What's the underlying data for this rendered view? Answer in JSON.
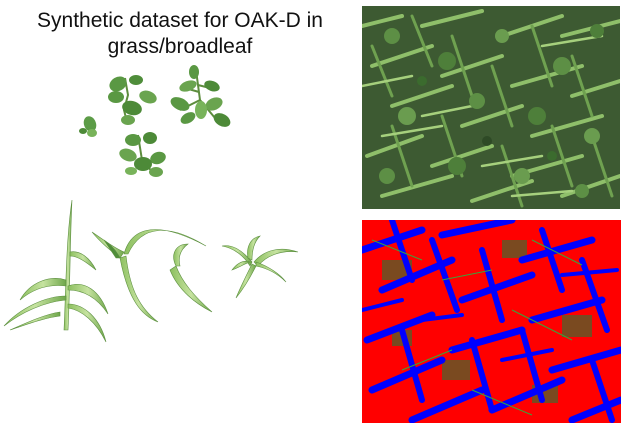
{
  "slide": {
    "title_line1": "Synthetic dataset for OAK-D in",
    "title_line2": "grass/broadleaf"
  },
  "figures": {
    "broadleaf_cutouts": {
      "image": "broadleaf-weed-cutouts"
    },
    "grass_cutouts": {
      "image": "grass-blade-cutouts"
    },
    "synthetic_image": {
      "image": "synthetic-grass-broadleaf-render"
    },
    "segmentation_mask": {
      "image": "segmentation-mask"
    }
  },
  "colors": {
    "broadleaf_mask": "#ff0000",
    "grass_mask": "#0000ff",
    "soil_mask": "#7a4a20",
    "leaf_dark": "#3f7a33",
    "leaf_light": "#8cbf6a"
  }
}
